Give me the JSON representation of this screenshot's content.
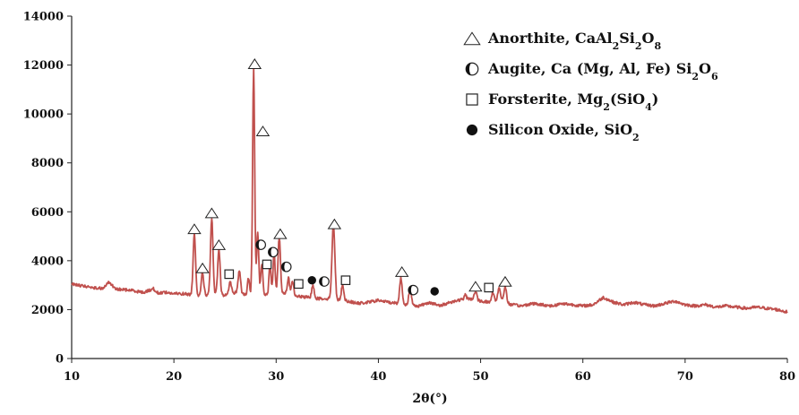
{
  "chart_data": {
    "type": "line",
    "xlabel": "2θ(°)",
    "ylabel": "",
    "xlim": [
      10,
      80
    ],
    "ylim": [
      0,
      14000
    ],
    "xticks": [
      10,
      20,
      30,
      40,
      50,
      60,
      70,
      80
    ],
    "yticks": [
      0,
      2000,
      4000,
      6000,
      8000,
      10000,
      12000,
      14000
    ],
    "line_color": "#c0504d",
    "baseline": [
      [
        10,
        3050
      ],
      [
        11,
        2980
      ],
      [
        12,
        2900
      ],
      [
        13,
        2870
      ],
      [
        13.7,
        3150
      ],
      [
        14.2,
        2850
      ],
      [
        15,
        2820
      ],
      [
        16,
        2780
      ],
      [
        17,
        2700
      ],
      [
        18,
        2850
      ],
      [
        18.5,
        2650
      ],
      [
        19,
        2720
      ],
      [
        20,
        2650
      ],
      [
        21,
        2650
      ],
      [
        22,
        2580
      ],
      [
        23,
        2600
      ],
      [
        25,
        2580
      ],
      [
        26,
        2700
      ],
      [
        27,
        2600
      ],
      [
        30,
        2600
      ],
      [
        31,
        2700
      ],
      [
        32,
        2550
      ],
      [
        33,
        2500
      ],
      [
        34,
        2450
      ],
      [
        35,
        2450
      ],
      [
        36,
        2400
      ],
      [
        37,
        2350
      ],
      [
        38,
        2250
      ],
      [
        39,
        2300
      ],
      [
        40,
        2380
      ],
      [
        41,
        2300
      ],
      [
        42,
        2250
      ],
      [
        43,
        2200
      ],
      [
        44,
        2150
      ],
      [
        45,
        2300
      ],
      [
        46,
        2150
      ],
      [
        47,
        2300
      ],
      [
        48,
        2400
      ],
      [
        49,
        2450
      ],
      [
        50,
        2350
      ],
      [
        51,
        2300
      ],
      [
        52,
        2400
      ],
      [
        53,
        2200
      ],
      [
        54,
        2150
      ],
      [
        55,
        2250
      ],
      [
        56,
        2200
      ],
      [
        57,
        2150
      ],
      [
        58,
        2250
      ],
      [
        59,
        2200
      ],
      [
        60,
        2150
      ],
      [
        61,
        2200
      ],
      [
        62,
        2500
      ],
      [
        63,
        2300
      ],
      [
        64,
        2200
      ],
      [
        65,
        2300
      ],
      [
        66,
        2200
      ],
      [
        67,
        2150
      ],
      [
        68,
        2250
      ],
      [
        69,
        2350
      ],
      [
        70,
        2200
      ],
      [
        71,
        2150
      ],
      [
        72,
        2200
      ],
      [
        73,
        2100
      ],
      [
        74,
        2150
      ],
      [
        75,
        2100
      ],
      [
        76,
        2050
      ],
      [
        77,
        2100
      ],
      [
        78,
        2050
      ],
      [
        79,
        2000
      ],
      [
        80,
        1900
      ]
    ],
    "peaks": [
      {
        "x": 22.0,
        "y": 5100,
        "w": 0.12
      },
      {
        "x": 22.8,
        "y": 3500,
        "w": 0.12
      },
      {
        "x": 23.7,
        "y": 5750,
        "w": 0.12
      },
      {
        "x": 24.4,
        "y": 4450,
        "w": 0.12
      },
      {
        "x": 25.5,
        "y": 3150,
        "w": 0.12
      },
      {
        "x": 26.4,
        "y": 3600,
        "w": 0.12
      },
      {
        "x": 27.3,
        "y": 3300,
        "w": 0.1
      },
      {
        "x": 27.8,
        "y": 11900,
        "w": 0.1
      },
      {
        "x": 28.2,
        "y": 5200,
        "w": 0.1
      },
      {
        "x": 28.6,
        "y": 3900,
        "w": 0.1
      },
      {
        "x": 29.4,
        "y": 3850,
        "w": 0.1
      },
      {
        "x": 29.8,
        "y": 4400,
        "w": 0.1
      },
      {
        "x": 30.3,
        "y": 4950,
        "w": 0.12
      },
      {
        "x": 31.2,
        "y": 3300,
        "w": 0.1
      },
      {
        "x": 31.6,
        "y": 3200,
        "w": 0.1
      },
      {
        "x": 33.6,
        "y": 3000,
        "w": 0.12
      },
      {
        "x": 35.6,
        "y": 5500,
        "w": 0.14
      },
      {
        "x": 36.5,
        "y": 3000,
        "w": 0.12
      },
      {
        "x": 42.2,
        "y": 3300,
        "w": 0.12
      },
      {
        "x": 43.1,
        "y": 2900,
        "w": 0.12
      },
      {
        "x": 48.5,
        "y": 2600,
        "w": 0.1
      },
      {
        "x": 49.5,
        "y": 2750,
        "w": 0.12
      },
      {
        "x": 51.2,
        "y": 2700,
        "w": 0.12
      },
      {
        "x": 51.8,
        "y": 2900,
        "w": 0.12
      },
      {
        "x": 52.4,
        "y": 2950,
        "w": 0.12
      }
    ],
    "markers": [
      {
        "symbol": "triangle",
        "x": 22.0,
        "y": 5300
      },
      {
        "symbol": "triangle",
        "x": 22.8,
        "y": 3700
      },
      {
        "symbol": "triangle",
        "x": 23.7,
        "y": 5950
      },
      {
        "symbol": "triangle",
        "x": 24.4,
        "y": 4650
      },
      {
        "symbol": "triangle",
        "x": 27.9,
        "y": 12050
      },
      {
        "symbol": "triangle",
        "x": 28.7,
        "y": 9300
      },
      {
        "symbol": "triangle",
        "x": 30.4,
        "y": 5100
      },
      {
        "symbol": "triangle",
        "x": 35.7,
        "y": 5500
      },
      {
        "symbol": "triangle",
        "x": 42.3,
        "y": 3550
      },
      {
        "symbol": "triangle",
        "x": 49.5,
        "y": 2950
      },
      {
        "symbol": "triangle",
        "x": 52.4,
        "y": 3150
      },
      {
        "symbol": "circle-half",
        "x": 28.5,
        "y": 4650
      },
      {
        "symbol": "circle-half",
        "x": 29.7,
        "y": 4350
      },
      {
        "symbol": "circle-half",
        "x": 31.0,
        "y": 3750
      },
      {
        "symbol": "circle-half",
        "x": 34.7,
        "y": 3150
      },
      {
        "symbol": "circle-half",
        "x": 43.4,
        "y": 2800
      },
      {
        "symbol": "square",
        "x": 25.4,
        "y": 3450
      },
      {
        "symbol": "square",
        "x": 29.1,
        "y": 3850
      },
      {
        "symbol": "square",
        "x": 32.2,
        "y": 3050
      },
      {
        "symbol": "square",
        "x": 36.8,
        "y": 3200
      },
      {
        "symbol": "square",
        "x": 50.8,
        "y": 2900
      },
      {
        "symbol": "dot",
        "x": 33.5,
        "y": 3200
      },
      {
        "symbol": "dot",
        "x": 45.5,
        "y": 2750
      }
    ],
    "legend_position": "top-right",
    "legend": [
      {
        "symbol": "triangle",
        "name": "Anorthite",
        "formula": [
          [
            "CaAl",
            ""
          ],
          [
            "2",
            "sub"
          ],
          [
            "Si",
            ""
          ],
          [
            "2",
            "sub"
          ],
          [
            "O",
            ""
          ],
          [
            "8",
            "sub"
          ]
        ]
      },
      {
        "symbol": "circle-half",
        "name": "Augite",
        "formula": [
          [
            "Ca (Mg, Al, Fe) Si",
            ""
          ],
          [
            "2",
            "sub"
          ],
          [
            "O",
            ""
          ],
          [
            "6",
            "sub"
          ]
        ]
      },
      {
        "symbol": "square",
        "name": "Forsterite",
        "formula": [
          [
            "Mg",
            ""
          ],
          [
            "2",
            "sub"
          ],
          [
            "(SiO",
            ""
          ],
          [
            "4",
            "sub"
          ],
          [
            ")",
            ""
          ]
        ]
      },
      {
        "symbol": "dot",
        "name": "Silicon Oxide",
        "formula": [
          [
            " SiO",
            ""
          ],
          [
            "2",
            "sub"
          ]
        ]
      }
    ]
  }
}
